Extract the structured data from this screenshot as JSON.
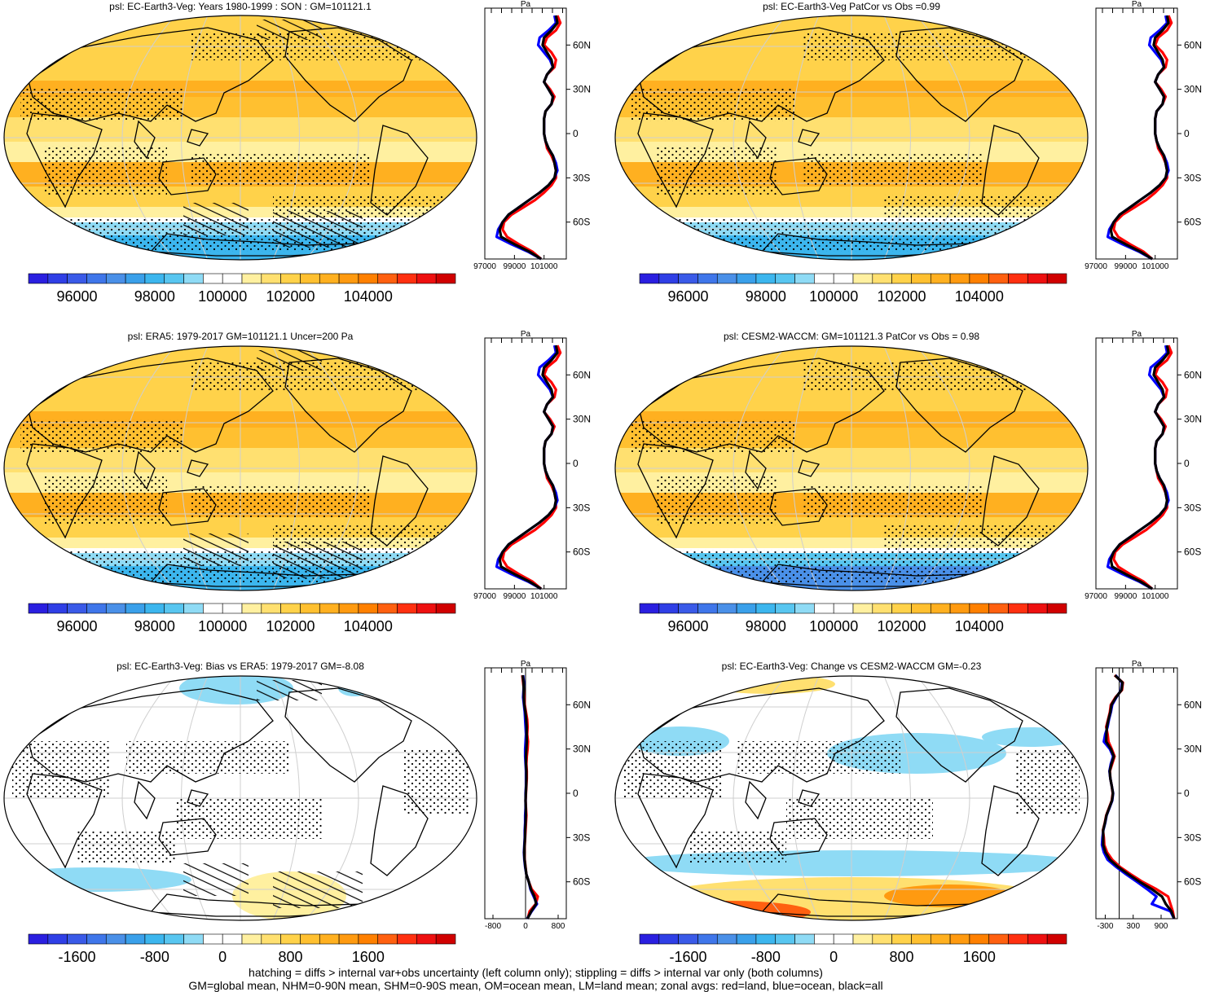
{
  "colors": {
    "levels": [
      "#2a1fe0",
      "#2f3fe6",
      "#3a5ae8",
      "#3f76ea",
      "#4a90e8",
      "#3aa0ea",
      "#3cb6ee",
      "#58c6f0",
      "#8fdbf5",
      "#ffffff",
      "#ffffff",
      "#fff0a0",
      "#ffe070",
      "#ffd24a",
      "#ffc030",
      "#ffb020",
      "#ff9a10",
      "#ff8000",
      "#ff6010",
      "#ff3010",
      "#ee1010",
      "#d00000"
    ],
    "land_line": "#ff0000",
    "ocean_line": "#0000ff",
    "all_line": "#000000"
  },
  "panels": [
    {
      "id": "p1",
      "title": "psl: EC-Earth3-Veg: Years 1980-1999 : SON : GM=101121.1",
      "kind": "abs",
      "stipple": "dense",
      "hatch": true
    },
    {
      "id": "p2",
      "title": "psl: EC-Earth3-Veg PatCor vs Obs =0.99",
      "kind": "abs",
      "stipple": "dense",
      "hatch": false
    },
    {
      "id": "p3",
      "title": "psl: ERA5: 1979-2017 GM=101121.1 Uncer=200 Pa",
      "kind": "abs",
      "stipple": "dense",
      "hatch": true
    },
    {
      "id": "p4",
      "title": "psl: CESM2-WACCM: GM=101121.3 PatCor vs Obs = 0.98",
      "kind": "abs2",
      "stipple": "dense",
      "hatch": false
    },
    {
      "id": "p5",
      "title": "psl: EC-Earth3-Veg: Bias vs ERA5: 1979-2017  GM=-8.08",
      "kind": "bias",
      "stipple": "sparse",
      "hatch": true
    },
    {
      "id": "p6",
      "title": "psl: EC-Earth3-Veg: Change vs CESM2-WACCM GM=-0.23",
      "kind": "change",
      "stipple": "sparse",
      "hatch": false
    }
  ],
  "colorbar_abs": {
    "ticks": [
      "96000",
      "98000",
      "100000",
      "102000",
      "104000"
    ]
  },
  "colorbar_diff": {
    "ticks": [
      "-1600",
      "-800",
      "0",
      "800",
      "1600"
    ]
  },
  "zonal_abs": {
    "unit": "Pa",
    "x_ticks": [
      "97000",
      "99000",
      "101000"
    ],
    "y_ticks": [
      "60N",
      "30N",
      "0",
      "30S",
      "60S"
    ],
    "xlim": [
      97000,
      102500
    ],
    "lat": [
      80,
      75,
      70,
      65,
      60,
      55,
      50,
      45,
      40,
      35,
      30,
      25,
      20,
      15,
      10,
      5,
      0,
      -5,
      -10,
      -15,
      -20,
      -25,
      -30,
      -35,
      -40,
      -45,
      -50,
      -55,
      -60,
      -65,
      -70,
      -75,
      -80,
      -85
    ],
    "series": [
      {
        "name": "land",
        "color": "#ff0000",
        "values": [
          101900,
          102100,
          101800,
          101200,
          101000,
          101500,
          101800,
          101700,
          101200,
          101000,
          101400,
          101700,
          101500,
          101100,
          101000,
          101000,
          101000,
          101100,
          101200,
          101500,
          101700,
          101800,
          101800,
          101500,
          101000,
          100400,
          99600,
          98800,
          98300,
          98200,
          98500,
          99300,
          100200,
          100800
        ]
      },
      {
        "name": "ocean",
        "color": "#0000ff",
        "values": [
          101700,
          101800,
          101300,
          100700,
          100600,
          101000,
          101400,
          101600,
          101200,
          101000,
          101300,
          101600,
          101500,
          101100,
          101000,
          101000,
          101000,
          101100,
          101300,
          101600,
          101800,
          101900,
          101700,
          101300,
          100700,
          100000,
          99300,
          98600,
          98200,
          97900,
          97800,
          98800,
          99900,
          100800
        ]
      },
      {
        "name": "all",
        "color": "#000000",
        "values": [
          101800,
          101900,
          101500,
          101000,
          100900,
          101200,
          101500,
          101600,
          101200,
          101000,
          101300,
          101600,
          101500,
          101100,
          101000,
          101000,
          101000,
          101100,
          101300,
          101600,
          101700,
          101800,
          101700,
          101300,
          100700,
          100000,
          99300,
          98600,
          98200,
          98000,
          98100,
          99000,
          100000,
          100800
        ]
      }
    ]
  },
  "zonal_bias": {
    "unit": "Pa",
    "x_ticks": [
      "-800",
      "0",
      "800"
    ],
    "y_ticks": [
      "60N",
      "30N",
      "0",
      "30S",
      "60S"
    ],
    "xlim": [
      -1000,
      1000
    ],
    "lat": [
      80,
      75,
      70,
      65,
      60,
      55,
      50,
      45,
      40,
      35,
      30,
      25,
      20,
      15,
      10,
      5,
      0,
      -5,
      -10,
      -15,
      -20,
      -25,
      -30,
      -35,
      -40,
      -45,
      -50,
      -55,
      -60,
      -65,
      -70,
      -75,
      -80,
      -85
    ],
    "series": [
      {
        "name": "land",
        "color": "#ff0000",
        "values": [
          -80,
          -60,
          -40,
          -30,
          -20,
          10,
          40,
          50,
          40,
          60,
          50,
          30,
          20,
          30,
          30,
          20,
          10,
          0,
          10,
          20,
          10,
          0,
          -10,
          -20,
          -30,
          -20,
          0,
          20,
          80,
          150,
          300,
          250,
          100,
          50
        ]
      },
      {
        "name": "ocean",
        "color": "#0000ff",
        "values": [
          -60,
          -40,
          -50,
          -60,
          -40,
          -20,
          -10,
          0,
          10,
          0,
          -10,
          -10,
          0,
          10,
          10,
          10,
          0,
          0,
          0,
          -10,
          -10,
          -20,
          -20,
          -30,
          -40,
          -30,
          -10,
          20,
          80,
          120,
          200,
          280,
          150,
          40
        ]
      },
      {
        "name": "all",
        "color": "#000000",
        "values": [
          -70,
          -50,
          -45,
          -45,
          -30,
          -5,
          15,
          25,
          25,
          30,
          20,
          10,
          10,
          20,
          20,
          15,
          5,
          0,
          5,
          5,
          0,
          -10,
          -15,
          -25,
          -35,
          -25,
          -5,
          20,
          80,
          130,
          220,
          260,
          140,
          45
        ]
      }
    ]
  },
  "zonal_change": {
    "unit": "Pa",
    "x_ticks": [
      "-300",
      "300",
      "900"
    ],
    "y_ticks": [
      "60N",
      "30N",
      "0",
      "30S",
      "60S"
    ],
    "xlim": [
      -500,
      1250
    ],
    "lat": [
      80,
      75,
      70,
      65,
      60,
      55,
      50,
      45,
      40,
      35,
      30,
      25,
      20,
      15,
      10,
      5,
      0,
      -5,
      -10,
      -15,
      -20,
      -25,
      -30,
      -35,
      -40,
      -45,
      -50,
      -55,
      -60,
      -65,
      -70,
      -75,
      -80,
      -85
    ],
    "series": [
      {
        "name": "land",
        "color": "#ff0000",
        "values": [
          -100,
          80,
          60,
          -80,
          -180,
          -200,
          -240,
          -280,
          -250,
          -230,
          -160,
          -100,
          -150,
          -200,
          -190,
          -160,
          -140,
          -160,
          -220,
          -280,
          -310,
          -350,
          -330,
          -320,
          -260,
          -150,
          20,
          250,
          500,
          800,
          1050,
          1100,
          1150,
          1180
        ]
      },
      {
        "name": "ocean",
        "color": "#0000ff",
        "values": [
          -80,
          60,
          40,
          -60,
          -150,
          -180,
          -220,
          -250,
          -300,
          -330,
          -200,
          -130,
          -180,
          -210,
          -190,
          -160,
          -130,
          -150,
          -210,
          -270,
          -300,
          -340,
          -360,
          -370,
          -330,
          -250,
          -60,
          150,
          380,
          600,
          800,
          700,
          1100,
          1180
        ]
      },
      {
        "name": "all",
        "color": "#000000",
        "values": [
          -90,
          70,
          50,
          -70,
          -165,
          -190,
          -230,
          -265,
          -275,
          -280,
          -180,
          -115,
          -165,
          -205,
          -190,
          -160,
          -135,
          -155,
          -215,
          -275,
          -305,
          -345,
          -345,
          -345,
          -295,
          -200,
          -20,
          200,
          440,
          700,
          920,
          1000,
          1120,
          1180
        ]
      }
    ]
  },
  "footer": {
    "line1": "hatching = diffs > internal var+obs uncertainty (left column only); stippling = diffs > internal var only (both columns)",
    "line2": "GM=global mean, NHM=0-90N mean, SHM=0-90S mean, OM=ocean mean, LM=land mean; zonal avgs: red=land, blue=ocean, black=all"
  }
}
